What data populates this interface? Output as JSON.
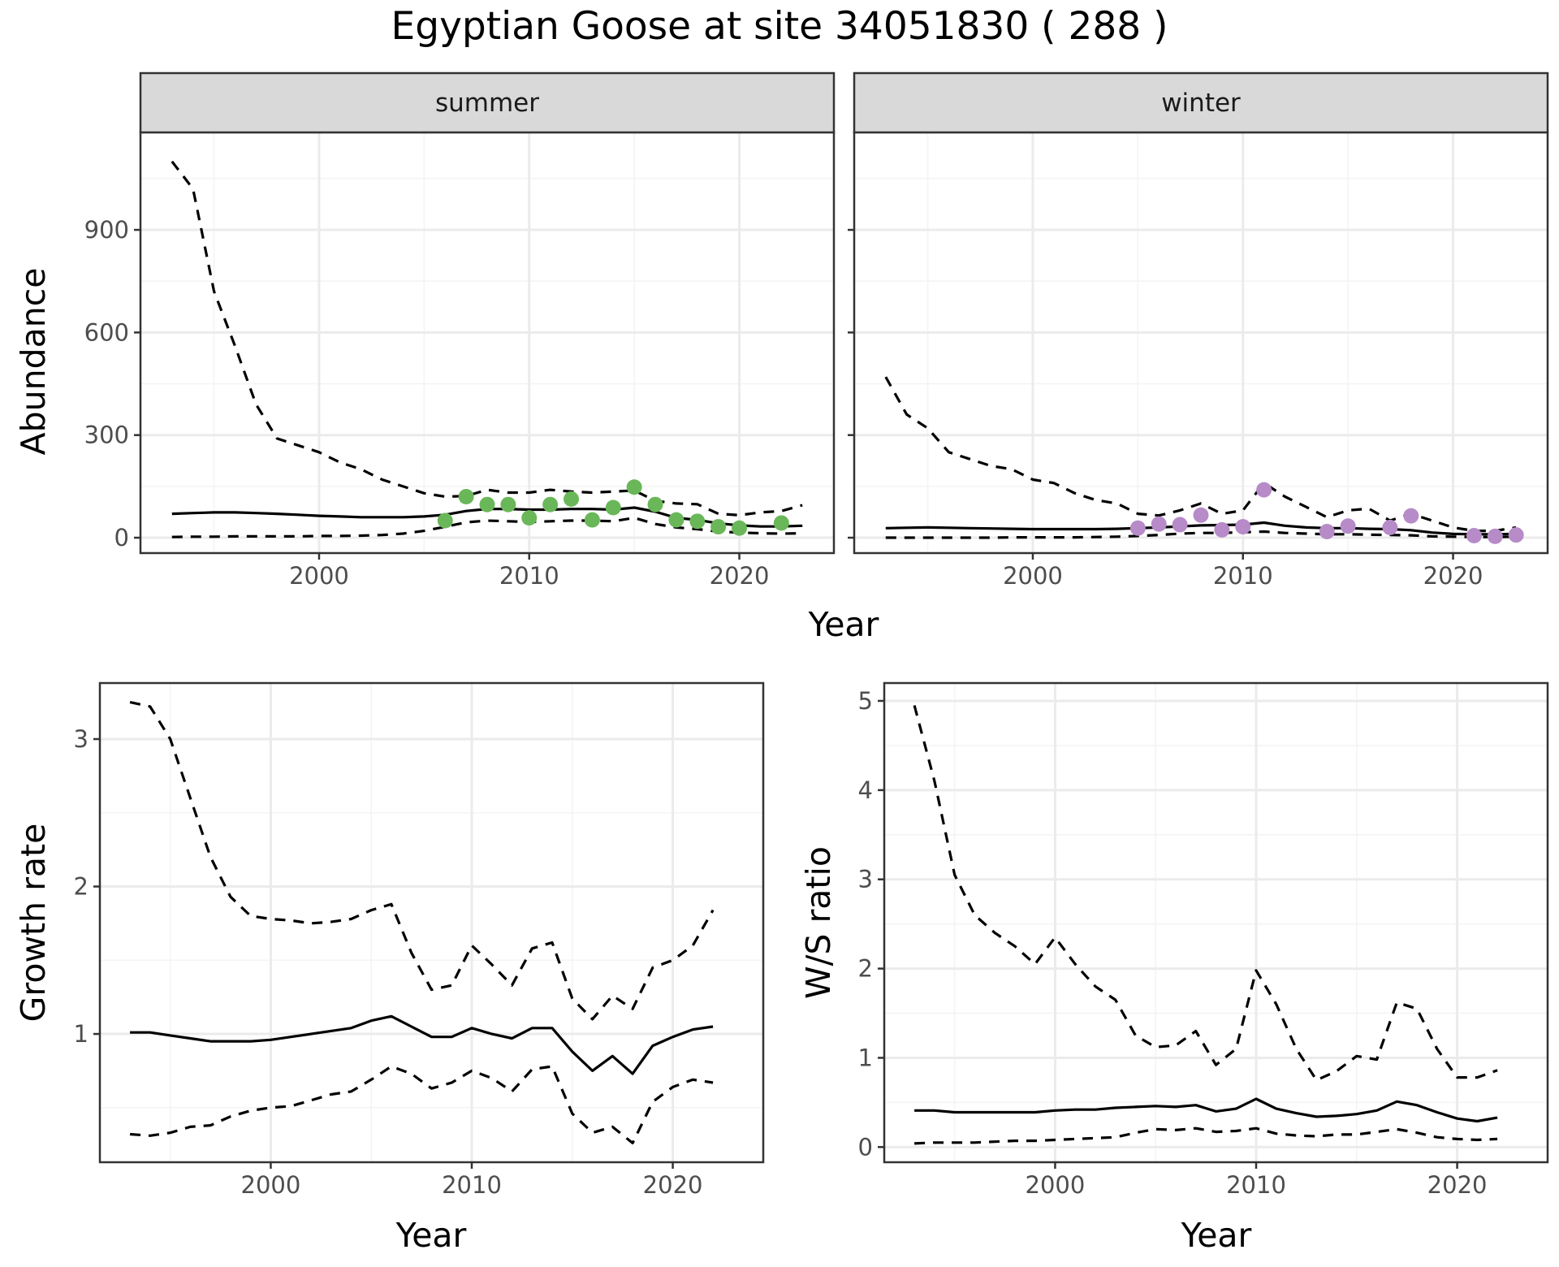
{
  "title": "Egyptian Goose at site 34051830 ( 288 )",
  "colors": {
    "summer_points": "#6ab759",
    "winter_points": "#b68bc8",
    "line": "#000000",
    "grid_major": "#ebebeb",
    "grid_minor": "#f4f4f4",
    "strip_bg": "#d9d9d9",
    "panel_border": "#333333"
  },
  "chart_data": [
    {
      "type": "line",
      "ylabel": "Abundance",
      "xlabel": "Year",
      "ylim": [
        -45,
        1185
      ],
      "xlim": [
        1991.5,
        2024.5
      ],
      "x_ticks": [
        "2000",
        "2010",
        "2020"
      ],
      "y_ticks": [
        "0",
        "300",
        "600",
        "900"
      ],
      "panels": [
        {
          "strip": "summer",
          "estimate": {
            "x": [
              1993,
              1994,
              1995,
              1996,
              1997,
              1998,
              1999,
              2000,
              2001,
              2002,
              2003,
              2004,
              2005,
              2006,
              2007,
              2008,
              2009,
              2010,
              2011,
              2012,
              2013,
              2014,
              2015,
              2016,
              2017,
              2018,
              2019,
              2020,
              2021,
              2022,
              2023
            ],
            "y": [
              70,
              72,
              74,
              74,
              72,
              70,
              67,
              64,
              62,
              60,
              60,
              60,
              62,
              67,
              78,
              84,
              84,
              82,
              82,
              84,
              84,
              82,
              88,
              76,
              58,
              52,
              42,
              36,
              33,
              33,
              35
            ]
          },
          "upper": {
            "x": [
              1993,
              1994,
              1995,
              1996,
              1997,
              1998,
              1999,
              2000,
              2001,
              2002,
              2003,
              2004,
              2005,
              2006,
              2007,
              2008,
              2009,
              2010,
              2011,
              2012,
              2013,
              2014,
              2015,
              2016,
              2017,
              2018,
              2019,
              2020,
              2021,
              2022,
              2023
            ],
            "y": [
              1100,
              1020,
              720,
              560,
              390,
              290,
              270,
              250,
              220,
              200,
              170,
              150,
              130,
              120,
              122,
              140,
              132,
              132,
              140,
              135,
              132,
              135,
              138,
              108,
              100,
              98,
              70,
              66,
              74,
              78,
              95
            ]
          },
          "lower": {
            "x": [
              1993,
              1994,
              1995,
              1996,
              1997,
              1998,
              1999,
              2000,
              2001,
              2002,
              2003,
              2004,
              2005,
              2006,
              2007,
              2008,
              2009,
              2010,
              2011,
              2012,
              2013,
              2014,
              2015,
              2016,
              2017,
              2018,
              2019,
              2020,
              2021,
              2022,
              2023
            ],
            "y": [
              2,
              3,
              3,
              4,
              4,
              4,
              4,
              5,
              5,
              6,
              8,
              12,
              20,
              32,
              45,
              50,
              48,
              46,
              48,
              50,
              50,
              48,
              58,
              40,
              30,
              25,
              18,
              15,
              13,
              12,
              13
            ]
          },
          "points": {
            "x": [
              2006,
              2007,
              2008,
              2009,
              2010,
              2011,
              2012,
              2013,
              2014,
              2015,
              2016,
              2017,
              2018,
              2019,
              2020,
              2022
            ],
            "y": [
              50,
              120,
              97,
              97,
              58,
              97,
              113,
              52,
              88,
              148,
              97,
              52,
              48,
              32,
              28,
              43
            ]
          }
        },
        {
          "strip": "winter",
          "estimate": {
            "x": [
              1993,
              1994,
              1995,
              1996,
              1997,
              1998,
              1999,
              2000,
              2001,
              2002,
              2003,
              2004,
              2005,
              2006,
              2007,
              2008,
              2009,
              2010,
              2011,
              2012,
              2013,
              2014,
              2015,
              2016,
              2017,
              2018,
              2019,
              2020,
              2021,
              2022,
              2023
            ],
            "y": [
              28,
              29,
              30,
              29,
              28,
              27,
              26,
              25,
              25,
              25,
              25,
              26,
              28,
              30,
              33,
              36,
              37,
              38,
              44,
              35,
              30,
              28,
              28,
              26,
              25,
              22,
              15,
              11,
              10,
              10,
              11
            ]
          },
          "upper": {
            "x": [
              1993,
              1994,
              1995,
              1996,
              1997,
              1998,
              1999,
              2000,
              2001,
              2002,
              2003,
              2004,
              2005,
              2006,
              2007,
              2008,
              2009,
              2010,
              2011,
              2012,
              2013,
              2014,
              2015,
              2016,
              2017,
              2018,
              2019,
              2020,
              2021,
              2022,
              2023
            ],
            "y": [
              470,
              360,
              320,
              250,
              230,
              210,
              200,
              170,
              160,
              130,
              110,
              100,
              70,
              65,
              80,
              100,
              70,
              80,
              160,
              120,
              90,
              60,
              80,
              85,
              50,
              70,
              50,
              30,
              20,
              20,
              30
            ]
          },
          "lower": {
            "x": [
              1993,
              1994,
              1995,
              1996,
              1997,
              1998,
              1999,
              2000,
              2001,
              2002,
              2003,
              2004,
              2005,
              2006,
              2007,
              2008,
              2009,
              2010,
              2011,
              2012,
              2013,
              2014,
              2015,
              2016,
              2017,
              2018,
              2019,
              2020,
              2021,
              2022,
              2023
            ],
            "y": [
              0,
              0,
              0,
              0,
              0,
              0,
              1,
              1,
              1,
              1,
              2,
              3,
              5,
              8,
              12,
              14,
              14,
              16,
              18,
              14,
              12,
              10,
              10,
              9,
              8,
              7,
              4,
              3,
              2,
              2,
              3
            ]
          },
          "points": {
            "x": [
              2005,
              2006,
              2007,
              2008,
              2009,
              2010,
              2011,
              2014,
              2015,
              2017,
              2018,
              2021,
              2022,
              2023
            ],
            "y": [
              28,
              40,
              38,
              66,
              23,
              32,
              140,
              18,
              34,
              30,
              64,
              6,
              4,
              8
            ]
          }
        }
      ]
    },
    {
      "type": "line",
      "ylabel": "Growth rate",
      "xlabel": "Year",
      "ylim": [
        0.13,
        3.38
      ],
      "xlim": [
        1991.5,
        2024.5
      ],
      "x_ticks": [
        "2000",
        "2010",
        "2020"
      ],
      "y_ticks": [
        "1",
        "2",
        "3"
      ],
      "series": [
        {
          "name": "",
          "x": [
            1993,
            1994,
            1995,
            1996,
            1997,
            1998,
            1999,
            2000,
            2001,
            2002,
            2003,
            2004,
            2005,
            2006,
            2007,
            2008,
            2009,
            2010,
            2011,
            2012,
            2013,
            2014,
            2015,
            2016,
            2017,
            2018,
            2019,
            2020,
            2021,
            2022
          ],
          "y": [
            1.01,
            1.01,
            0.99,
            0.97,
            0.95,
            0.95,
            0.95,
            0.96,
            0.98,
            1.0,
            1.02,
            1.04,
            1.09,
            1.12,
            1.05,
            0.98,
            0.98,
            1.04,
            1.0,
            0.97,
            1.04,
            1.04,
            0.88,
            0.75,
            0.85,
            0.73,
            0.92,
            0.98,
            1.03,
            1.05
          ]
        },
        {
          "name": "",
          "x": [
            1993,
            1994,
            1995,
            1996,
            1997,
            1998,
            1999,
            2000,
            2001,
            2002,
            2003,
            2004,
            2005,
            2006,
            2007,
            2008,
            2009,
            2010,
            2011,
            2012,
            2013,
            2014,
            2015,
            2016,
            2017,
            2018,
            2019,
            2020,
            2021,
            2022
          ],
          "y": [
            3.25,
            3.22,
            3.0,
            2.6,
            2.2,
            1.93,
            1.8,
            1.78,
            1.77,
            1.75,
            1.76,
            1.78,
            1.84,
            1.88,
            1.55,
            1.3,
            1.33,
            1.6,
            1.47,
            1.33,
            1.58,
            1.62,
            1.24,
            1.1,
            1.26,
            1.17,
            1.45,
            1.5,
            1.6,
            1.84
          ]
        },
        {
          "name": "",
          "x": [
            1993,
            1994,
            1995,
            1996,
            1997,
            1998,
            1999,
            2000,
            2001,
            2002,
            2003,
            2004,
            2005,
            2006,
            2007,
            2008,
            2009,
            2010,
            2011,
            2012,
            2013,
            2014,
            2015,
            2016,
            2017,
            2018,
            2019,
            2020,
            2021,
            2022
          ],
          "y": [
            0.32,
            0.31,
            0.33,
            0.37,
            0.38,
            0.44,
            0.48,
            0.5,
            0.51,
            0.55,
            0.59,
            0.61,
            0.69,
            0.78,
            0.73,
            0.63,
            0.67,
            0.75,
            0.7,
            0.61,
            0.76,
            0.78,
            0.46,
            0.33,
            0.37,
            0.26,
            0.54,
            0.64,
            0.69,
            0.67
          ]
        }
      ]
    },
    {
      "type": "line",
      "ylabel": "W/S ratio",
      "xlabel": "Year",
      "ylim": [
        -0.17,
        5.2
      ],
      "xlim": [
        1991.5,
        2024.5
      ],
      "x_ticks": [
        "2000",
        "2010",
        "2020"
      ],
      "y_ticks": [
        "0",
        "1",
        "2",
        "3",
        "4",
        "5"
      ],
      "series": [
        {
          "name": "",
          "x": [
            1993,
            1994,
            1995,
            1996,
            1997,
            1998,
            1999,
            2000,
            2001,
            2002,
            2003,
            2004,
            2005,
            2006,
            2007,
            2008,
            2009,
            2010,
            2011,
            2012,
            2013,
            2014,
            2015,
            2016,
            2017,
            2018,
            2019,
            2020,
            2021,
            2022
          ],
          "y": [
            0.41,
            0.41,
            0.39,
            0.39,
            0.39,
            0.39,
            0.39,
            0.41,
            0.42,
            0.42,
            0.44,
            0.45,
            0.46,
            0.45,
            0.47,
            0.4,
            0.43,
            0.54,
            0.43,
            0.38,
            0.34,
            0.35,
            0.37,
            0.41,
            0.51,
            0.47,
            0.39,
            0.32,
            0.29,
            0.33
          ]
        },
        {
          "name": "",
          "x": [
            1993,
            1994,
            1995,
            1996,
            1997,
            1998,
            1999,
            2000,
            2001,
            2002,
            2003,
            2004,
            2005,
            2006,
            2007,
            2008,
            2009,
            2010,
            2011,
            2012,
            2013,
            2014,
            2015,
            2016,
            2017,
            2018,
            2019,
            2020,
            2021,
            2022
          ],
          "y": [
            4.95,
            4.1,
            3.05,
            2.6,
            2.4,
            2.25,
            2.05,
            2.35,
            2.05,
            1.8,
            1.65,
            1.25,
            1.12,
            1.14,
            1.3,
            0.92,
            1.1,
            1.98,
            1.6,
            1.1,
            0.75,
            0.85,
            1.02,
            0.98,
            1.62,
            1.55,
            1.1,
            0.78,
            0.78,
            0.86
          ]
        },
        {
          "name": "",
          "x": [
            1993,
            1994,
            1995,
            1996,
            1997,
            1998,
            1999,
            2000,
            2001,
            2002,
            2003,
            2004,
            2005,
            2006,
            2007,
            2008,
            2009,
            2010,
            2011,
            2012,
            2013,
            2014,
            2015,
            2016,
            2017,
            2018,
            2019,
            2020,
            2021,
            2022
          ],
          "y": [
            0.04,
            0.05,
            0.05,
            0.05,
            0.06,
            0.07,
            0.07,
            0.08,
            0.09,
            0.1,
            0.11,
            0.16,
            0.2,
            0.19,
            0.21,
            0.17,
            0.18,
            0.21,
            0.15,
            0.13,
            0.12,
            0.14,
            0.14,
            0.17,
            0.2,
            0.16,
            0.11,
            0.09,
            0.08,
            0.09
          ]
        }
      ]
    }
  ]
}
